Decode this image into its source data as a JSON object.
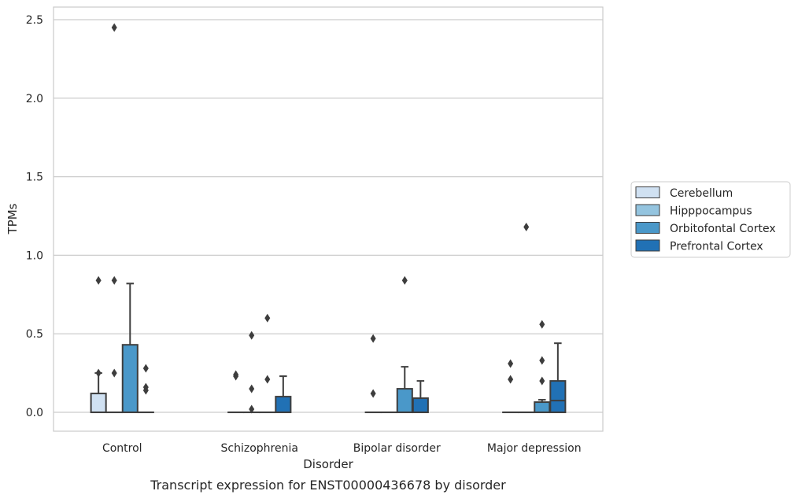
{
  "chart_data": {
    "type": "box",
    "caption": "Transcript expression for ENST00000436678 by disorder",
    "xlabel": "Disorder",
    "ylabel": "TPMs",
    "ylim": [
      -0.12,
      2.58
    ],
    "yticks": [
      0.0,
      0.5,
      1.0,
      1.5,
      2.0,
      2.5
    ],
    "ytick_labels": [
      "0.0",
      "0.5",
      "1.0",
      "1.5",
      "2.0",
      "2.5"
    ],
    "categories": [
      "Control",
      "Schizophrenia",
      "Bipolar disorder",
      "Major depression"
    ],
    "grid": "horizontal",
    "legend_position": "right",
    "series": [
      {
        "name": "Cerebellum",
        "color": "#d0e1f2",
        "boxes": [
          {
            "category": "Control",
            "q1": 0.0,
            "median": 0.0,
            "q3": 0.12,
            "whisker_low": 0.0,
            "whisker_high": 0.25,
            "outliers": [
              0.84,
              0.25
            ]
          },
          {
            "category": "Schizophrenia",
            "q1": 0.0,
            "median": 0.0,
            "q3": 0.0,
            "whisker_low": 0.0,
            "whisker_high": 0.0,
            "outliers": [
              0.24,
              0.23
            ]
          },
          {
            "category": "Bipolar disorder",
            "q1": 0.0,
            "median": 0.0,
            "q3": 0.0,
            "whisker_low": 0.0,
            "whisker_high": 0.0,
            "outliers": [
              0.47,
              0.12
            ]
          },
          {
            "category": "Major depression",
            "q1": 0.0,
            "median": 0.0,
            "q3": 0.0,
            "whisker_low": 0.0,
            "whisker_high": 0.0,
            "outliers": [
              0.31,
              0.21
            ]
          }
        ]
      },
      {
        "name": "Hipppocampus",
        "color": "#94c4df",
        "boxes": [
          {
            "category": "Control",
            "q1": 0.0,
            "median": 0.0,
            "q3": 0.0,
            "whisker_low": 0.0,
            "whisker_high": 0.0,
            "outliers": [
              2.45,
              0.84,
              0.25
            ]
          },
          {
            "category": "Schizophrenia",
            "q1": 0.0,
            "median": 0.0,
            "q3": 0.0,
            "whisker_low": 0.0,
            "whisker_high": 0.0,
            "outliers": [
              0.49,
              0.15,
              0.02
            ]
          },
          {
            "category": "Bipolar disorder",
            "q1": 0.0,
            "median": 0.0,
            "q3": 0.0,
            "whisker_low": 0.0,
            "whisker_high": 0.0,
            "outliers": []
          },
          {
            "category": "Major depression",
            "q1": 0.0,
            "median": 0.0,
            "q3": 0.0,
            "whisker_low": 0.0,
            "whisker_high": 0.0,
            "outliers": [
              1.18
            ]
          }
        ]
      },
      {
        "name": "Orbitofontal Cortex",
        "color": "#4a98c9",
        "boxes": [
          {
            "category": "Control",
            "q1": 0.0,
            "median": 0.0,
            "q3": 0.43,
            "whisker_low": 0.0,
            "whisker_high": 0.82,
            "outliers": []
          },
          {
            "category": "Schizophrenia",
            "q1": 0.0,
            "median": 0.0,
            "q3": 0.0,
            "whisker_low": 0.0,
            "whisker_high": 0.0,
            "outliers": [
              0.6,
              0.21
            ]
          },
          {
            "category": "Bipolar disorder",
            "q1": 0.0,
            "median": 0.0,
            "q3": 0.15,
            "whisker_low": 0.0,
            "whisker_high": 0.29,
            "outliers": [
              0.84
            ]
          },
          {
            "category": "Major depression",
            "q1": 0.0,
            "median": 0.0,
            "q3": 0.065,
            "whisker_low": 0.0,
            "whisker_high": 0.08,
            "outliers": [
              0.56,
              0.33,
              0.2
            ]
          }
        ]
      },
      {
        "name": "Prefrontal Cortex",
        "color": "#2171b5",
        "boxes": [
          {
            "category": "Control",
            "q1": 0.0,
            "median": 0.0,
            "q3": 0.0,
            "whisker_low": 0.0,
            "whisker_high": 0.0,
            "outliers": [
              0.28,
              0.16,
              0.14
            ]
          },
          {
            "category": "Schizophrenia",
            "q1": 0.0,
            "median": 0.0,
            "q3": 0.1,
            "whisker_low": 0.0,
            "whisker_high": 0.23,
            "outliers": []
          },
          {
            "category": "Bipolar disorder",
            "q1": 0.0,
            "median": 0.0,
            "q3": 0.09,
            "whisker_low": 0.0,
            "whisker_high": 0.2,
            "outliers": []
          },
          {
            "category": "Major depression",
            "q1": 0.0,
            "median": 0.075,
            "q3": 0.2,
            "whisker_low": 0.0,
            "whisker_high": 0.44,
            "outliers": []
          }
        ]
      }
    ]
  }
}
